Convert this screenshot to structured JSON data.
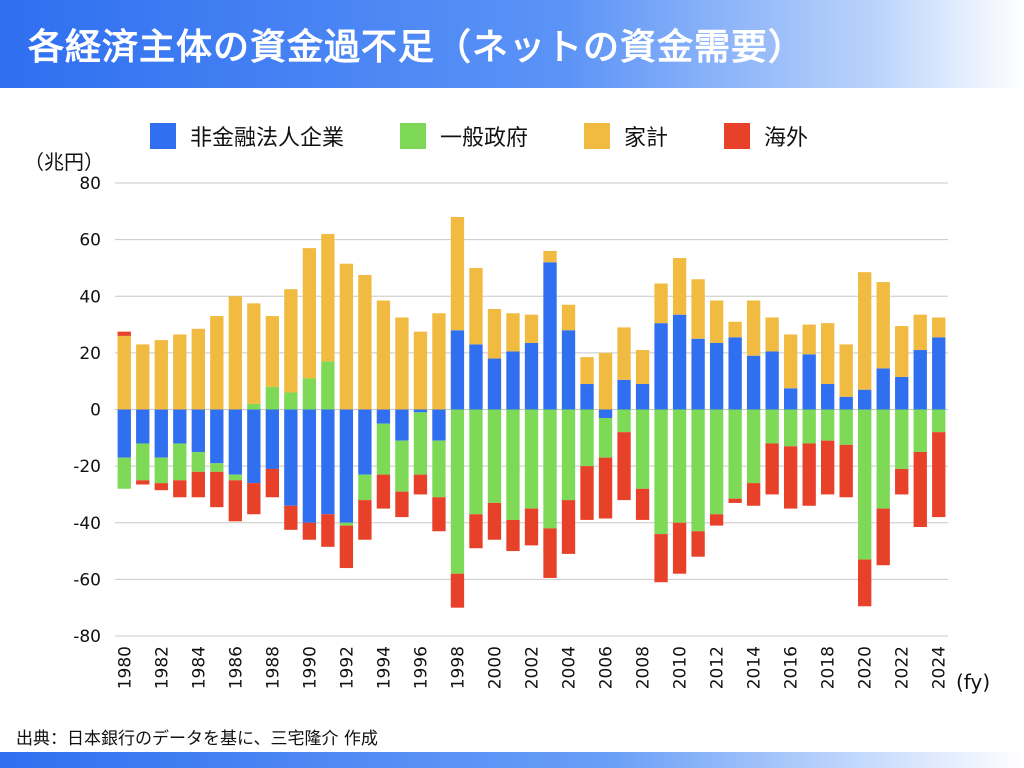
{
  "title": "各経済主体の資金過不足（ネットの資金需要）",
  "source": "出典：日本銀行のデータを基に、三宅隆介 作成",
  "legend": [
    {
      "name": "非金融法人企業",
      "color": "#2f6ff0"
    },
    {
      "name": "一般政府",
      "color": "#7ed957"
    },
    {
      "name": "家計",
      "color": "#f0bb40"
    },
    {
      "name": "海外",
      "color": "#e8412a"
    }
  ],
  "chart_data": {
    "type": "bar",
    "stacked": true,
    "ylabel": "（兆円）",
    "xlabel": "(fy)",
    "ylim": [
      -80,
      80
    ],
    "yticks": [
      80,
      60,
      40,
      20,
      0,
      -20,
      -40,
      -60,
      -80
    ],
    "xtick_labels": [
      "1980",
      "1982",
      "1984",
      "1986",
      "1988",
      "1990",
      "1992",
      "1994",
      "1996",
      "1998",
      "2000",
      "2002",
      "2004",
      "2006",
      "2008",
      "2010",
      "2012",
      "2014",
      "2016",
      "2018",
      "2020",
      "2022",
      "2024"
    ],
    "grid": true,
    "legend_position": "top",
    "categories": [
      "1980",
      "1981",
      "1982",
      "1983",
      "1984",
      "1985",
      "1986",
      "1987",
      "1988",
      "1989",
      "1990",
      "1991",
      "1992",
      "1993",
      "1994",
      "1995",
      "1996",
      "1997",
      "1998",
      "1999",
      "2000",
      "2001",
      "2002",
      "2003",
      "2004",
      "2005",
      "2006",
      "2007",
      "2008",
      "2009",
      "2010",
      "2011",
      "2012",
      "2013",
      "2014",
      "2015",
      "2016",
      "2017",
      "2018",
      "2019",
      "2020",
      "2021",
      "2022",
      "2023",
      "2024"
    ],
    "series": [
      {
        "name": "非金融法人企業",
        "color": "#2f6ff0",
        "values": [
          -17,
          -12,
          -17,
          -12,
          -15,
          -19,
          -23,
          -26,
          -21,
          -34,
          -40,
          -37,
          -40,
          -23,
          -5,
          -11,
          -1,
          -11,
          28,
          23,
          18,
          20.5,
          23.5,
          52,
          28,
          9,
          -3,
          10.5,
          9,
          30.5,
          33.5,
          25,
          23.5,
          25.5,
          19,
          20.5,
          7.5,
          19.5,
          9,
          4.5,
          7,
          14.5,
          11.5,
          21,
          25.5
        ]
      },
      {
        "name": "一般政府",
        "color": "#7ed957",
        "values": [
          -11,
          -13,
          -9,
          -13,
          -7,
          -3,
          -2,
          2,
          8,
          6,
          11,
          17,
          -1,
          -9,
          -18,
          -18,
          -22,
          -20,
          -58,
          -37,
          -33,
          -39,
          -35,
          -42,
          -32,
          -20,
          -14,
          -8,
          -28,
          -44,
          -40,
          -43,
          -37,
          -31.5,
          -26,
          -12,
          -13,
          -12,
          -11,
          -12.5,
          -53,
          -35,
          -21,
          -15,
          -8
        ]
      },
      {
        "name": "家計",
        "color": "#f0bb40",
        "values": [
          26,
          23,
          24.5,
          26.5,
          28.5,
          33,
          40,
          35.5,
          25,
          36.5,
          46,
          45,
          51.5,
          47.5,
          38.5,
          32.5,
          27.5,
          34,
          40,
          27,
          17.5,
          13.5,
          10,
          4,
          9,
          9.5,
          20,
          18.5,
          12,
          14,
          20,
          21,
          15,
          5.5,
          19.5,
          12,
          19,
          10.5,
          21.5,
          18.5,
          41.5,
          30.5,
          18,
          12.5,
          7
        ]
      },
      {
        "name": "海外",
        "color": "#e8412a",
        "values": [
          1.5,
          -1.5,
          -2.5,
          -6,
          -9,
          -12.5,
          -14.5,
          -11,
          -10,
          -8.5,
          -6,
          -11.5,
          -15,
          -14,
          -12,
          -9,
          -7,
          -12,
          -12,
          -12,
          -13,
          -11,
          -13,
          -17.5,
          -19,
          -19,
          -21.5,
          -24,
          -11,
          -17,
          -18,
          -9,
          -4,
          -1.5,
          -8,
          -18,
          -22,
          -22,
          -19,
          -18.5,
          -16.5,
          -20,
          -9,
          -26.5,
          -30
        ]
      }
    ]
  }
}
